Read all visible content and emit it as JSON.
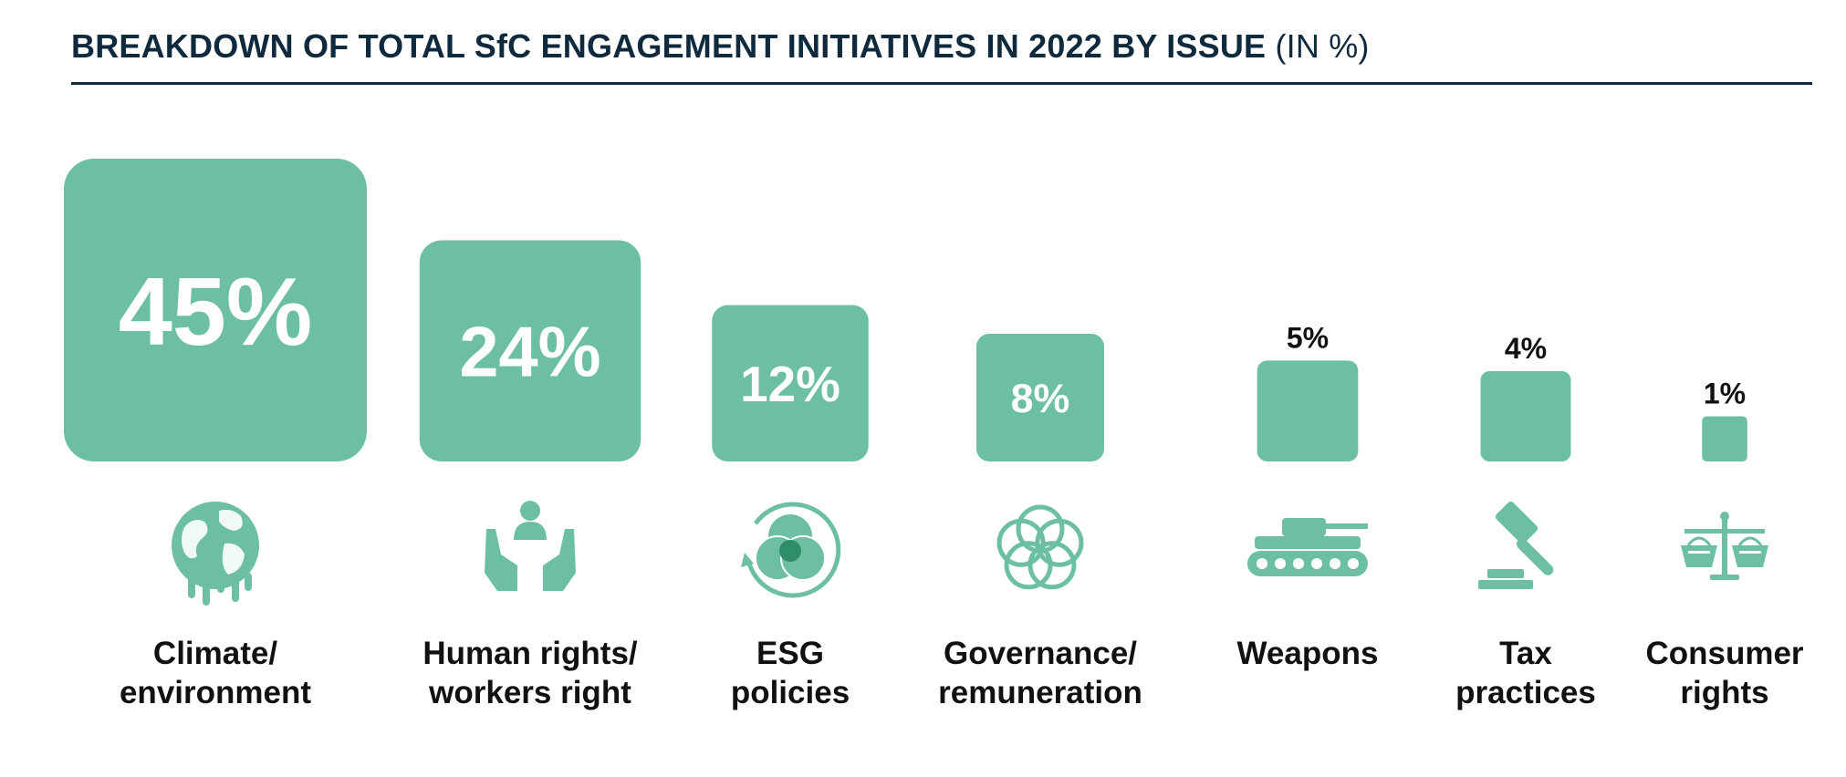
{
  "title": "BREAKDOWN OF TOTAL SfC ENGAGEMENT INITIATIVES IN 2022 BY ISSUE",
  "title_unit": "(IN %)",
  "colors": {
    "accent": "#6cbfa3",
    "title": "#0f2a3d",
    "text": "#111111"
  },
  "chart_data": {
    "type": "bar",
    "title": "BREAKDOWN OF TOTAL SfC ENGAGEMENT INITIATIVES IN 2022 BY ISSUE (IN %)",
    "categories": [
      "Climate/ environment",
      "Human rights/ workers right",
      "ESG policies",
      "Governance/ remuneration",
      "Weapons",
      "Tax practices",
      "Consumer rights"
    ],
    "values": [
      45,
      24,
      12,
      8,
      5,
      4,
      1
    ],
    "data_labels": [
      "45%",
      "24%",
      "12%",
      "8%",
      "5%",
      "4%",
      "1%"
    ],
    "unit": "%",
    "label_lines": [
      [
        "Climate/",
        "environment"
      ],
      [
        "Human rights/",
        "workers right"
      ],
      [
        "ESG",
        "policies"
      ],
      [
        "Governance/",
        "remuneration"
      ],
      [
        "Weapons"
      ],
      [
        "Tax",
        "practices"
      ],
      [
        "Consumer",
        "rights"
      ]
    ],
    "icons": [
      "globe-melting-icon",
      "hands-person-icon",
      "venn-cycle-icon",
      "flower-rings-icon",
      "tank-icon",
      "gavel-icon",
      "scales-baskets-icon"
    ],
    "legend": "none",
    "grid": false
  }
}
